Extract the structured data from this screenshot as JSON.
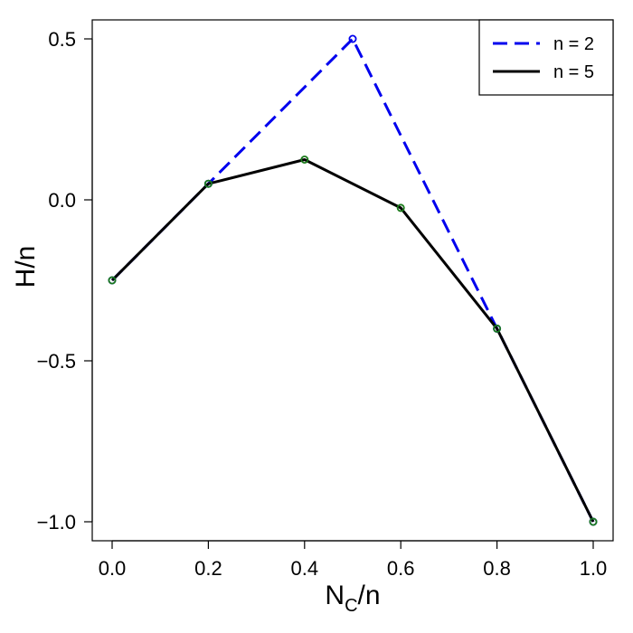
{
  "chart_data": {
    "type": "line",
    "title": "",
    "xlabel": {
      "main": "N",
      "sub": "C",
      "suffix": "/n"
    },
    "ylabel": "H/n",
    "xlim": [
      0,
      1
    ],
    "ylim": [
      -1,
      0.5
    ],
    "x_ticks": [
      0,
      0.2,
      0.4,
      0.6,
      0.8,
      1.0
    ],
    "x_tick_labels": [
      "0.0",
      "0.2",
      "0.4",
      "0.6",
      "0.8",
      "1.0"
    ],
    "y_ticks": [
      -1,
      -0.5,
      0,
      0.5
    ],
    "y_tick_labels": [
      "−1.0",
      "−0.5",
      "0.0",
      "0.5"
    ],
    "grid": false,
    "legend_position": "top-right",
    "series": [
      {
        "name": "n = 2",
        "color": "#0000ee",
        "line_style": "dashed",
        "marker_color": "#0000ee",
        "x": [
          0,
          0.2,
          0.5,
          0.8,
          1.0
        ],
        "y": [
          -0.25,
          0.05,
          0.5,
          -0.4,
          -1.0
        ]
      },
      {
        "name": "n = 5",
        "color": "#000000",
        "line_style": "solid",
        "marker_color": "#1a7a1a",
        "x": [
          0,
          0.2,
          0.4,
          0.6,
          0.8,
          1.0
        ],
        "y": [
          -0.25,
          0.05,
          0.125,
          -0.025,
          -0.4,
          -1.0
        ]
      }
    ]
  }
}
